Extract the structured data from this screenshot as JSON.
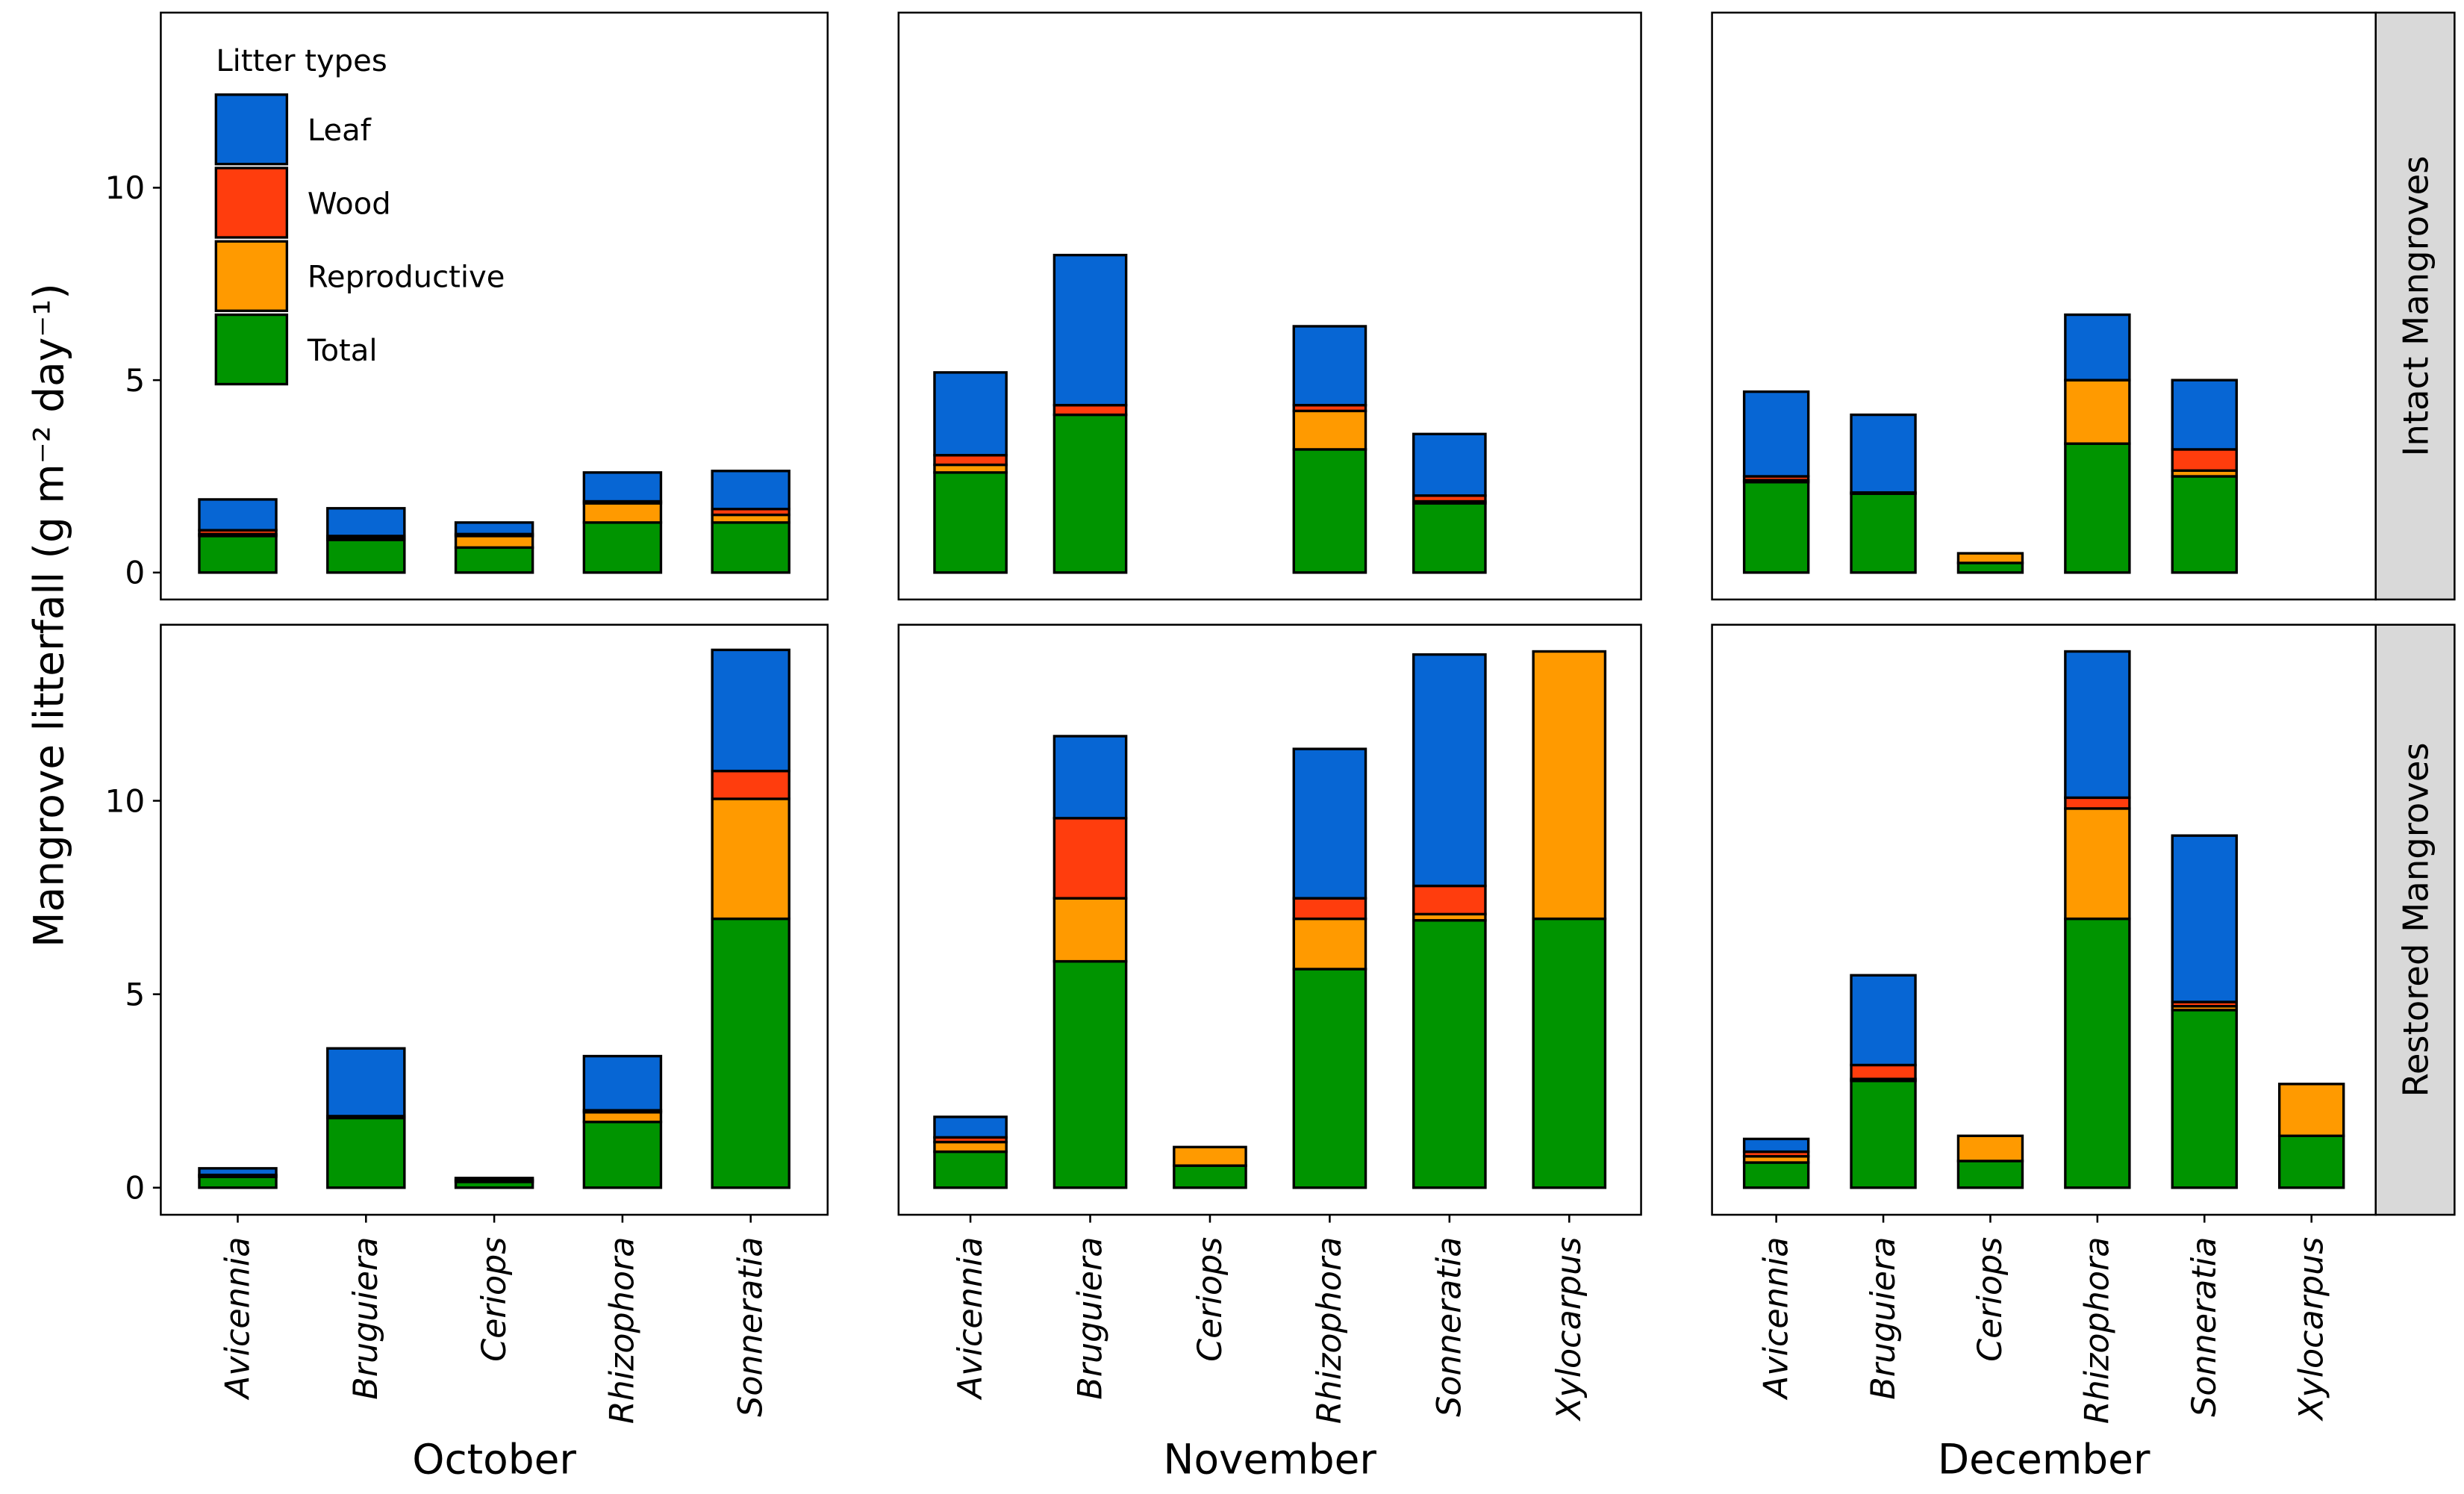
{
  "chart_data": [
    {
      "type": "bar",
      "stacked": true,
      "ylabel": "Mangrove litterfall (g m⁻² day⁻¹)",
      "legend_title": "Litter types",
      "legend": "top-left",
      "ylim": [
        -0.7,
        14.55
      ],
      "yticks": [
        0,
        5,
        10
      ],
      "series": [
        {
          "name": "Leaf",
          "color": "#0766d4",
          "values": [
            0.8,
            0.72,
            0.3,
            0.75,
            0.99
          ]
        },
        {
          "name": "Wood",
          "color": "#ff3d0d",
          "values": [
            0.1,
            0.05,
            0.05,
            0.05,
            0.15
          ]
        },
        {
          "name": "Reproductive",
          "color": "#ff9a00",
          "values": [
            0.05,
            0.05,
            0.3,
            0.5,
            0.2
          ]
        },
        {
          "name": "Total",
          "color": "#009400",
          "values": [
            0.95,
            0.85,
            0.65,
            1.3,
            1.3
          ]
        }
      ]
    },
    {
      "type": "bar",
      "stacked": true,
      "ylim": [
        -0.7,
        14.55
      ],
      "series": [
        {
          "values": [
            2.15,
            3.9,
            null,
            2.05,
            1.6,
            null
          ]
        },
        {
          "values": [
            0.25,
            0.25,
            null,
            0.15,
            0.15,
            null
          ]
        },
        {
          "values": [
            0.2,
            0,
            null,
            1.0,
            0.05,
            null
          ]
        },
        {
          "values": [
            2.6,
            4.1,
            null,
            3.2,
            1.8,
            null
          ]
        }
      ]
    },
    {
      "type": "bar",
      "stacked": true,
      "ylim": [
        -0.7,
        14.55
      ],
      "facet_label": "Intact Mangroves",
      "series": [
        {
          "values": [
            2.2,
            2.02,
            0,
            1.7,
            1.8,
            null
          ]
        },
        {
          "values": [
            0.1,
            0.03,
            0,
            0,
            0.55,
            null
          ]
        },
        {
          "values": [
            0.05,
            0,
            0.25,
            1.65,
            0.15,
            null
          ]
        },
        {
          "values": [
            2.35,
            2.05,
            0.25,
            3.35,
            2.5,
            null
          ]
        }
      ]
    },
    {
      "type": "bar",
      "stacked": true,
      "ylim": [
        -0.7,
        14.55
      ],
      "yticks": [
        0,
        5,
        10
      ],
      "xlabel": "October",
      "categories": [
        "Avicennia",
        "Bruguiera",
        "Ceriops",
        "Rhizophora",
        "Sonneratia"
      ],
      "series": [
        {
          "values": [
            0.17,
            1.75,
            0.05,
            1.4,
            3.13
          ]
        },
        {
          "values": [
            0,
            0.05,
            0.05,
            0.05,
            0.72
          ]
        },
        {
          "values": [
            0.05,
            0,
            0,
            0.25,
            3.1
          ]
        },
        {
          "values": [
            0.28,
            1.8,
            0.15,
            1.7,
            6.95
          ]
        }
      ]
    },
    {
      "type": "bar",
      "stacked": true,
      "ylim": [
        -0.7,
        14.55
      ],
      "xlabel": "November",
      "categories": [
        "Avicennia",
        "Bruguiera",
        "Ceriops",
        "Rhizophora",
        "Sonneratia",
        "Xylocarpus"
      ],
      "series": [
        {
          "values": [
            0.53,
            2.12,
            0,
            3.86,
            5.98,
            0
          ]
        },
        {
          "values": [
            0.12,
            2.07,
            0,
            0.53,
            0.73,
            0
          ]
        },
        {
          "values": [
            0.25,
            1.63,
            0.48,
            1.3,
            0.16,
            6.91
          ]
        },
        {
          "values": [
            0.93,
            5.85,
            0.57,
            5.65,
            6.91,
            6.95
          ]
        }
      ]
    },
    {
      "type": "bar",
      "stacked": true,
      "ylim": [
        -0.7,
        14.55
      ],
      "xlabel": "December",
      "facet_label": "Restored Mangroves",
      "categories": [
        "Avicennia",
        "Bruguiera",
        "Ceriops",
        "Rhizophora",
        "Sonneratia",
        "Xylocarpus"
      ],
      "series": [
        {
          "values": [
            0.33,
            2.32,
            0,
            3.78,
            4.3,
            0
          ]
        },
        {
          "values": [
            0.12,
            0.36,
            0,
            0.28,
            0.11,
            0
          ]
        },
        {
          "values": [
            0.16,
            0.05,
            0.65,
            2.85,
            0.1,
            1.34
          ]
        },
        {
          "values": [
            0.65,
            2.76,
            0.69,
            6.95,
            4.59,
            1.34
          ]
        }
      ]
    }
  ]
}
